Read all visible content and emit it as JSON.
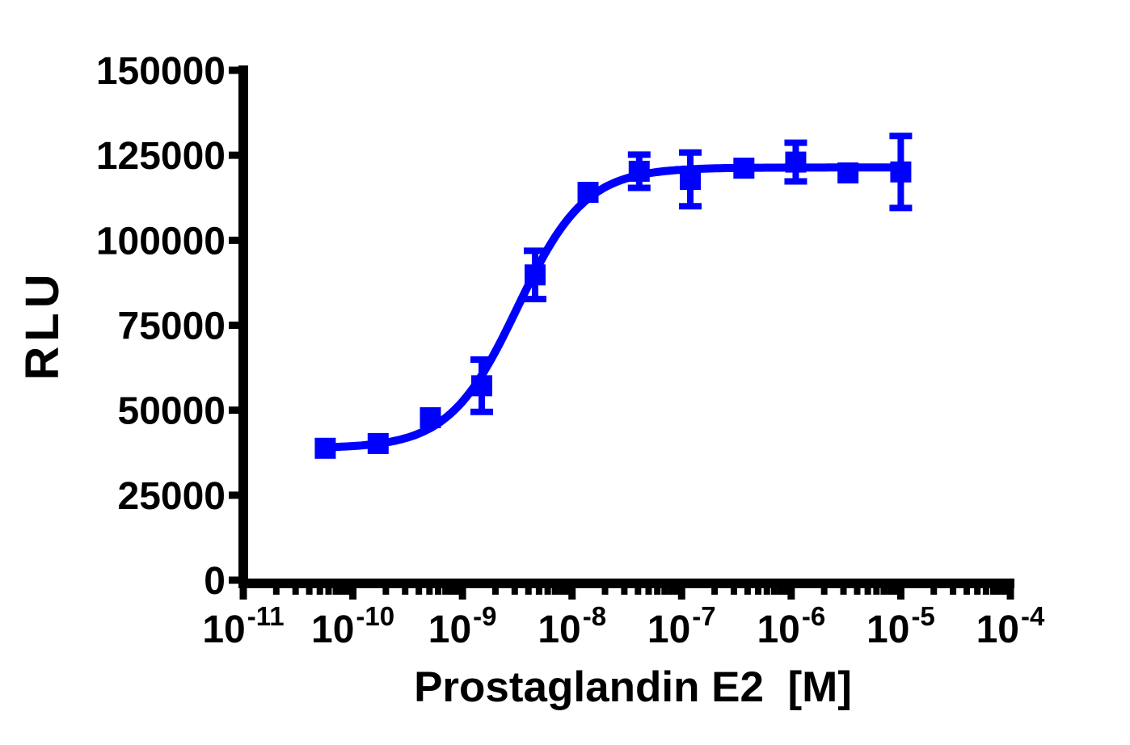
{
  "page": {
    "background_color": "#FFFFFF",
    "text_color": "#000000",
    "axis_color": "#000000"
  },
  "chart_data": {
    "type": "line",
    "title": "",
    "xlabel": "Prostaglandin E2  [M]",
    "ylabel": "RLU",
    "x_scale": "log10",
    "xlim_exponents": [
      -11,
      -4
    ],
    "ylim": [
      0,
      150000
    ],
    "grid": false,
    "legend": "none",
    "x_tick_base": "10",
    "x_tick_exponents": [
      -11,
      -10,
      -9,
      -8,
      -7,
      -6,
      -5,
      -4
    ],
    "y_ticks": [
      0,
      25000,
      50000,
      75000,
      100000,
      125000,
      150000
    ],
    "series": [
      {
        "name": "Prostaglandin E2",
        "color": "#0000FF",
        "marker": "square",
        "x": [
          5.6e-11,
          1.7e-10,
          5.1e-10,
          1.5e-09,
          4.6e-09,
          1.4e-08,
          4.1e-08,
          1.2e-07,
          3.7e-07,
          1.1e-06,
          3.3e-06,
          1e-05
        ],
        "y": [
          38800,
          40200,
          47800,
          57200,
          89800,
          114100,
          120300,
          117900,
          121200,
          123000,
          119800,
          120100
        ],
        "y_error": [
          0,
          0,
          0,
          7700,
          7100,
          0,
          4900,
          7900,
          0,
          5700,
          0,
          10600
        ]
      }
    ],
    "curve_fit": {
      "model": "four_parameter_logistic",
      "bottom": 38800,
      "top": 121400,
      "log_ec50": -8.5,
      "hill_slope": 1.4
    }
  }
}
